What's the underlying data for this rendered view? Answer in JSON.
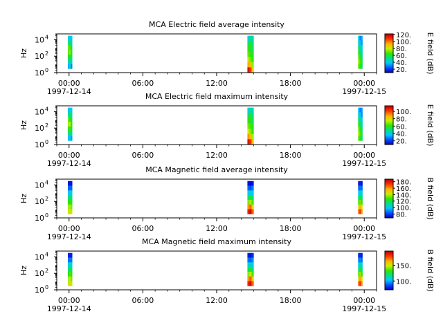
{
  "chart_data": [
    {
      "type": "heatmap",
      "title": "MCA  Electric field average intensity",
      "ylabel": "Hz",
      "y_scale": "log",
      "y_ticks": [
        {
          "base": "10",
          "exp": "0"
        },
        {
          "base": "10",
          "exp": "2"
        },
        {
          "base": "10",
          "exp": "4"
        }
      ],
      "x_ticks": [
        "00:00",
        "06:00",
        "12:00",
        "18:00",
        "00:00"
      ],
      "x_dates": [
        "1997-12-14",
        "1997-12-15"
      ],
      "colorbar_label": "E field (dB)",
      "colorbar_ticks": [
        "20.",
        "40.",
        "60.",
        "80.",
        "100.",
        "120."
      ],
      "colorbar_range": [
        10,
        122
      ],
      "color_scale": [
        "#0000c8",
        "#0050ff",
        "#00c8ff",
        "#00e08c",
        "#32e600",
        "#c8f000",
        "#ffb400",
        "#ff3c00",
        "#c80000"
      ],
      "segments": [
        {
          "start_hour": -0.1,
          "end_hour": 0.25,
          "freq_range": [
            3,
            30000
          ],
          "cells": [
            [
              40,
              40,
              40
            ],
            [
              55,
              58,
              40
            ],
            [
              72,
              68,
              55
            ],
            [
              70,
              75,
              60
            ],
            [
              62,
              60,
              50
            ],
            [
              48,
              50,
              42
            ],
            [
              35,
              45,
              30
            ]
          ]
        },
        {
          "start_hour": 14.5,
          "end_hour": 15.0,
          "freq_range": [
            1,
            30000
          ],
          "cells": [
            [
              45,
              50,
              48
            ],
            [
              58,
              62,
              55
            ],
            [
              65,
              60,
              58
            ],
            [
              70,
              66,
              62
            ],
            [
              78,
              72,
              65
            ],
            [
              95,
              90,
              75
            ],
            [
              118,
              110,
              90
            ]
          ]
        },
        {
          "start_hour": 23.5,
          "end_hour": 23.85,
          "freq_range": [
            3,
            30000
          ],
          "cells": [
            [
              40,
              30,
              35
            ],
            [
              45,
              40,
              32
            ],
            [
              55,
              48,
              40
            ],
            [
              62,
              55,
              48
            ],
            [
              70,
              62,
              52
            ],
            [
              75,
              68,
              58
            ],
            [
              70,
              64,
              55
            ]
          ]
        }
      ]
    },
    {
      "type": "heatmap",
      "title": "MCA  Electric field maximum intensity",
      "ylabel": "Hz",
      "y_scale": "log",
      "y_ticks": [
        {
          "base": "10",
          "exp": "0"
        },
        {
          "base": "10",
          "exp": "2"
        },
        {
          "base": "10",
          "exp": "4"
        }
      ],
      "x_ticks": [
        "00:00",
        "06:00",
        "12:00",
        "18:00",
        "00:00"
      ],
      "x_dates": [
        "1997-12-14",
        "1997-12-15"
      ],
      "colorbar_label": "E field (dB)",
      "colorbar_ticks": [
        "20.",
        "40.",
        "60.",
        "80.",
        "100."
      ],
      "colorbar_range": [
        10,
        115
      ],
      "color_scale": [
        "#0000c8",
        "#0050ff",
        "#00c8ff",
        "#00e08c",
        "#32e600",
        "#c8f000",
        "#ffb400",
        "#ff3c00",
        "#c80000"
      ],
      "segments": [
        {
          "start_hour": -0.1,
          "end_hour": 0.25,
          "freq_range": [
            3,
            30000
          ],
          "cells": [
            [
              35,
              40,
              38
            ],
            [
              50,
              55,
              42
            ],
            [
              68,
              62,
              52
            ],
            [
              72,
              75,
              60
            ],
            [
              60,
              64,
              55
            ],
            [
              48,
              52,
              45
            ],
            [
              35,
              40,
              32
            ]
          ]
        },
        {
          "start_hour": 14.5,
          "end_hour": 15.0,
          "freq_range": [
            1,
            30000
          ],
          "cells": [
            [
              40,
              48,
              45
            ],
            [
              55,
              58,
              52
            ],
            [
              62,
              58,
              55
            ],
            [
              68,
              64,
              60
            ],
            [
              75,
              70,
              62
            ],
            [
              92,
              85,
              72
            ],
            [
              110,
              105,
              88
            ]
          ]
        },
        {
          "start_hour": 23.5,
          "end_hour": 23.85,
          "freq_range": [
            3,
            30000
          ],
          "cells": [
            [
              35,
              28,
              32
            ],
            [
              42,
              38,
              30
            ],
            [
              52,
              45,
              38
            ],
            [
              60,
              52,
              45
            ],
            [
              68,
              60,
              50
            ],
            [
              72,
              65,
              55
            ],
            [
              66,
              60,
              52
            ]
          ]
        }
      ]
    },
    {
      "type": "heatmap",
      "title": "MCA  Magnetic field average intensity",
      "ylabel": "Hz",
      "y_scale": "log",
      "y_ticks": [
        {
          "base": "10",
          "exp": "0"
        },
        {
          "base": "10",
          "exp": "2"
        },
        {
          "base": "10",
          "exp": "4"
        }
      ],
      "x_ticks": [
        "00:00",
        "06:00",
        "12:00",
        "18:00",
        "00:00"
      ],
      "x_dates": [
        "1997-12-14",
        "1997-12-15"
      ],
      "colorbar_label": "B field (dB)",
      "colorbar_ticks": [
        "80.",
        "100.",
        "120.",
        "140.",
        "160.",
        "180."
      ],
      "colorbar_range": [
        68,
        188
      ],
      "color_scale": [
        "#0000c8",
        "#0050ff",
        "#00c8ff",
        "#00e08c",
        "#32e600",
        "#c8f000",
        "#ffb400",
        "#ff3c00",
        "#c80000"
      ],
      "segments": [
        {
          "start_hour": -0.1,
          "end_hour": 0.25,
          "freq_range": [
            3,
            30000
          ],
          "cells": [
            [
              72,
              72,
              72
            ],
            [
              85,
              85,
              85
            ],
            [
              100,
              105,
              100
            ],
            [
              115,
              118,
              112
            ],
            [
              125,
              128,
              122
            ],
            [
              138,
              140,
              135
            ],
            [
              145,
              148,
              142
            ]
          ]
        },
        {
          "start_hour": 14.5,
          "end_hour": 15.0,
          "freq_range": [
            3,
            30000
          ],
          "cells": [
            [
              72,
              70,
              72
            ],
            [
              85,
              82,
              88
            ],
            [
              100,
              105,
              100
            ],
            [
              118,
              122,
              115
            ],
            [
              135,
              140,
              130
            ],
            [
              162,
              168,
              150
            ],
            [
              180,
              186,
              170
            ]
          ]
        },
        {
          "start_hour": 23.5,
          "end_hour": 23.85,
          "freq_range": [
            3,
            30000
          ],
          "cells": [
            [
              72,
              75,
              72
            ],
            [
              85,
              88,
              85
            ],
            [
              100,
              105,
              100
            ],
            [
              115,
              120,
              112
            ],
            [
              130,
              135,
              125
            ],
            [
              150,
              158,
              145
            ],
            [
              168,
              176,
              160
            ]
          ]
        }
      ]
    },
    {
      "type": "heatmap",
      "title": "MCA  Magnetic field maximum intensity",
      "ylabel": "Hz",
      "y_scale": "log",
      "y_ticks": [
        {
          "base": "10",
          "exp": "0"
        },
        {
          "base": "10",
          "exp": "2"
        },
        {
          "base": "10",
          "exp": "4"
        }
      ],
      "x_ticks": [
        "00:00",
        "06:00",
        "12:00",
        "18:00",
        "00:00"
      ],
      "x_dates": [
        "1997-12-14",
        "1997-12-15"
      ],
      "colorbar_label": "B field (dB)",
      "colorbar_ticks": [
        "100.",
        "150."
      ],
      "colorbar_range": [
        72,
        195
      ],
      "color_scale": [
        "#0000c8",
        "#0050ff",
        "#00c8ff",
        "#00e08c",
        "#32e600",
        "#c8f000",
        "#ffb400",
        "#ff3c00",
        "#c80000"
      ],
      "segments": [
        {
          "start_hour": -0.1,
          "end_hour": 0.25,
          "freq_range": [
            3,
            30000
          ],
          "cells": [
            [
              78,
              78,
              78
            ],
            [
              92,
              92,
              92
            ],
            [
              108,
              112,
              105
            ],
            [
              122,
              126,
              118
            ],
            [
              132,
              136,
              128
            ],
            [
              145,
              148,
              140
            ],
            [
              152,
              155,
              148
            ]
          ]
        },
        {
          "start_hour": 14.5,
          "end_hour": 15.0,
          "freq_range": [
            3,
            30000
          ],
          "cells": [
            [
              78,
              76,
              80
            ],
            [
              92,
              90,
              95
            ],
            [
              108,
              112,
              105
            ],
            [
              125,
              130,
              120
            ],
            [
              142,
              148,
              135
            ],
            [
              168,
              176,
              158
            ],
            [
              186,
              192,
              176
            ]
          ]
        },
        {
          "start_hour": 23.5,
          "end_hour": 23.85,
          "freq_range": [
            3,
            30000
          ],
          "cells": [
            [
              78,
              80,
              78
            ],
            [
              92,
              95,
              90
            ],
            [
              108,
              112,
              105
            ],
            [
              122,
              128,
              118
            ],
            [
              138,
              144,
              132
            ],
            [
              158,
              166,
              150
            ],
            [
              176,
              184,
              168
            ]
          ]
        }
      ]
    }
  ]
}
